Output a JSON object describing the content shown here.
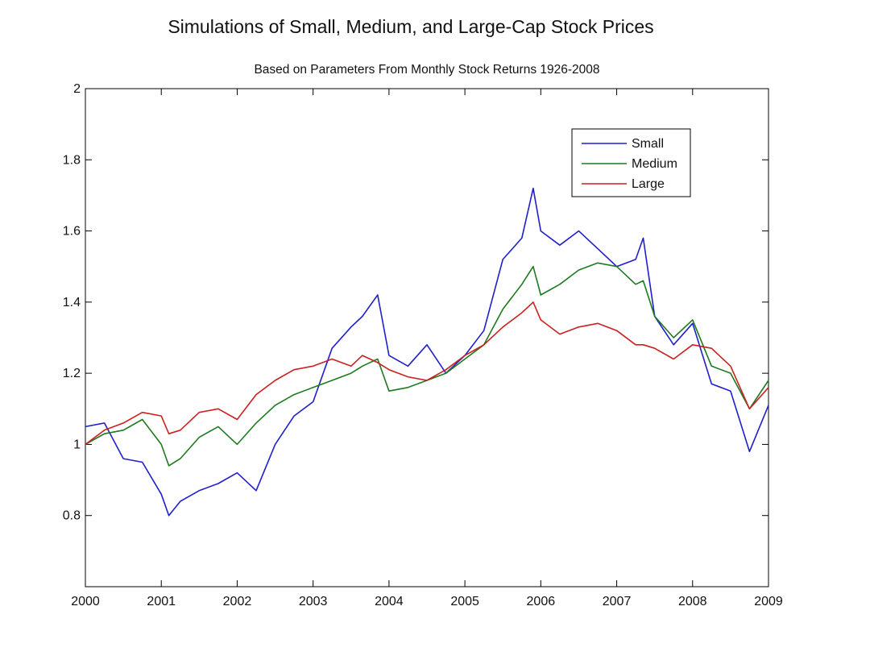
{
  "title": "Simulations of Small, Medium, and Large-Cap Stock Prices",
  "subtitle": "Based on Parameters From Monthly Stock Returns 1926-2008",
  "chart_data": {
    "type": "line",
    "title": "Simulations of Small, Medium, and Large-Cap Stock Prices",
    "subtitle": "Based on Parameters From Monthly Stock Returns 1926-2008",
    "xlabel": "",
    "ylabel": "",
    "xlim": [
      2000,
      2009
    ],
    "ylim": [
      0.6,
      2.0
    ],
    "x_ticks": [
      2000,
      2001,
      2002,
      2003,
      2004,
      2005,
      2006,
      2007,
      2008,
      2009
    ],
    "y_ticks": [
      0.8,
      1,
      1.2,
      1.4,
      1.6,
      1.8,
      2
    ],
    "y_tick_labels": [
      "0.8",
      "1",
      "1.2",
      "1.4",
      "1.6",
      "1.8",
      "2"
    ],
    "grid": false,
    "legend_position": "top-right",
    "x": [
      2000.0,
      2000.25,
      2000.5,
      2000.75,
      2001.0,
      2001.1,
      2001.25,
      2001.5,
      2001.75,
      2002.0,
      2002.25,
      2002.5,
      2002.75,
      2003.0,
      2003.25,
      2003.5,
      2003.65,
      2003.85,
      2004.0,
      2004.25,
      2004.5,
      2004.75,
      2005.0,
      2005.25,
      2005.5,
      2005.75,
      2005.9,
      2006.0,
      2006.25,
      2006.5,
      2006.75,
      2007.0,
      2007.25,
      2007.35,
      2007.5,
      2007.75,
      2008.0,
      2008.25,
      2008.5,
      2008.75,
      2009.0
    ],
    "series": [
      {
        "name": "Small",
        "color": "#1f1fcc",
        "values": [
          1.05,
          1.06,
          0.96,
          0.95,
          0.86,
          0.8,
          0.84,
          0.87,
          0.89,
          0.92,
          0.87,
          1.0,
          1.08,
          1.12,
          1.27,
          1.33,
          1.36,
          1.42,
          1.25,
          1.22,
          1.28,
          1.2,
          1.25,
          1.32,
          1.52,
          1.58,
          1.72,
          1.6,
          1.56,
          1.6,
          1.55,
          1.5,
          1.52,
          1.58,
          1.36,
          1.28,
          1.34,
          1.17,
          1.15,
          0.98,
          1.11
        ]
      },
      {
        "name": "Medium",
        "color": "#1e7a1e",
        "values": [
          1.0,
          1.03,
          1.04,
          1.07,
          1.0,
          0.94,
          0.96,
          1.02,
          1.05,
          1.0,
          1.06,
          1.11,
          1.14,
          1.16,
          1.18,
          1.2,
          1.22,
          1.24,
          1.15,
          1.16,
          1.18,
          1.2,
          1.24,
          1.28,
          1.38,
          1.45,
          1.5,
          1.42,
          1.45,
          1.49,
          1.51,
          1.5,
          1.45,
          1.46,
          1.36,
          1.3,
          1.35,
          1.22,
          1.2,
          1.1,
          1.18
        ]
      },
      {
        "name": "Large",
        "color": "#cc2020",
        "values": [
          1.0,
          1.04,
          1.06,
          1.09,
          1.08,
          1.03,
          1.04,
          1.09,
          1.1,
          1.07,
          1.14,
          1.18,
          1.21,
          1.22,
          1.24,
          1.22,
          1.25,
          1.23,
          1.21,
          1.19,
          1.18,
          1.21,
          1.25,
          1.28,
          1.33,
          1.37,
          1.4,
          1.35,
          1.31,
          1.33,
          1.34,
          1.32,
          1.28,
          1.28,
          1.27,
          1.24,
          1.28,
          1.27,
          1.22,
          1.1,
          1.16
        ]
      }
    ]
  }
}
